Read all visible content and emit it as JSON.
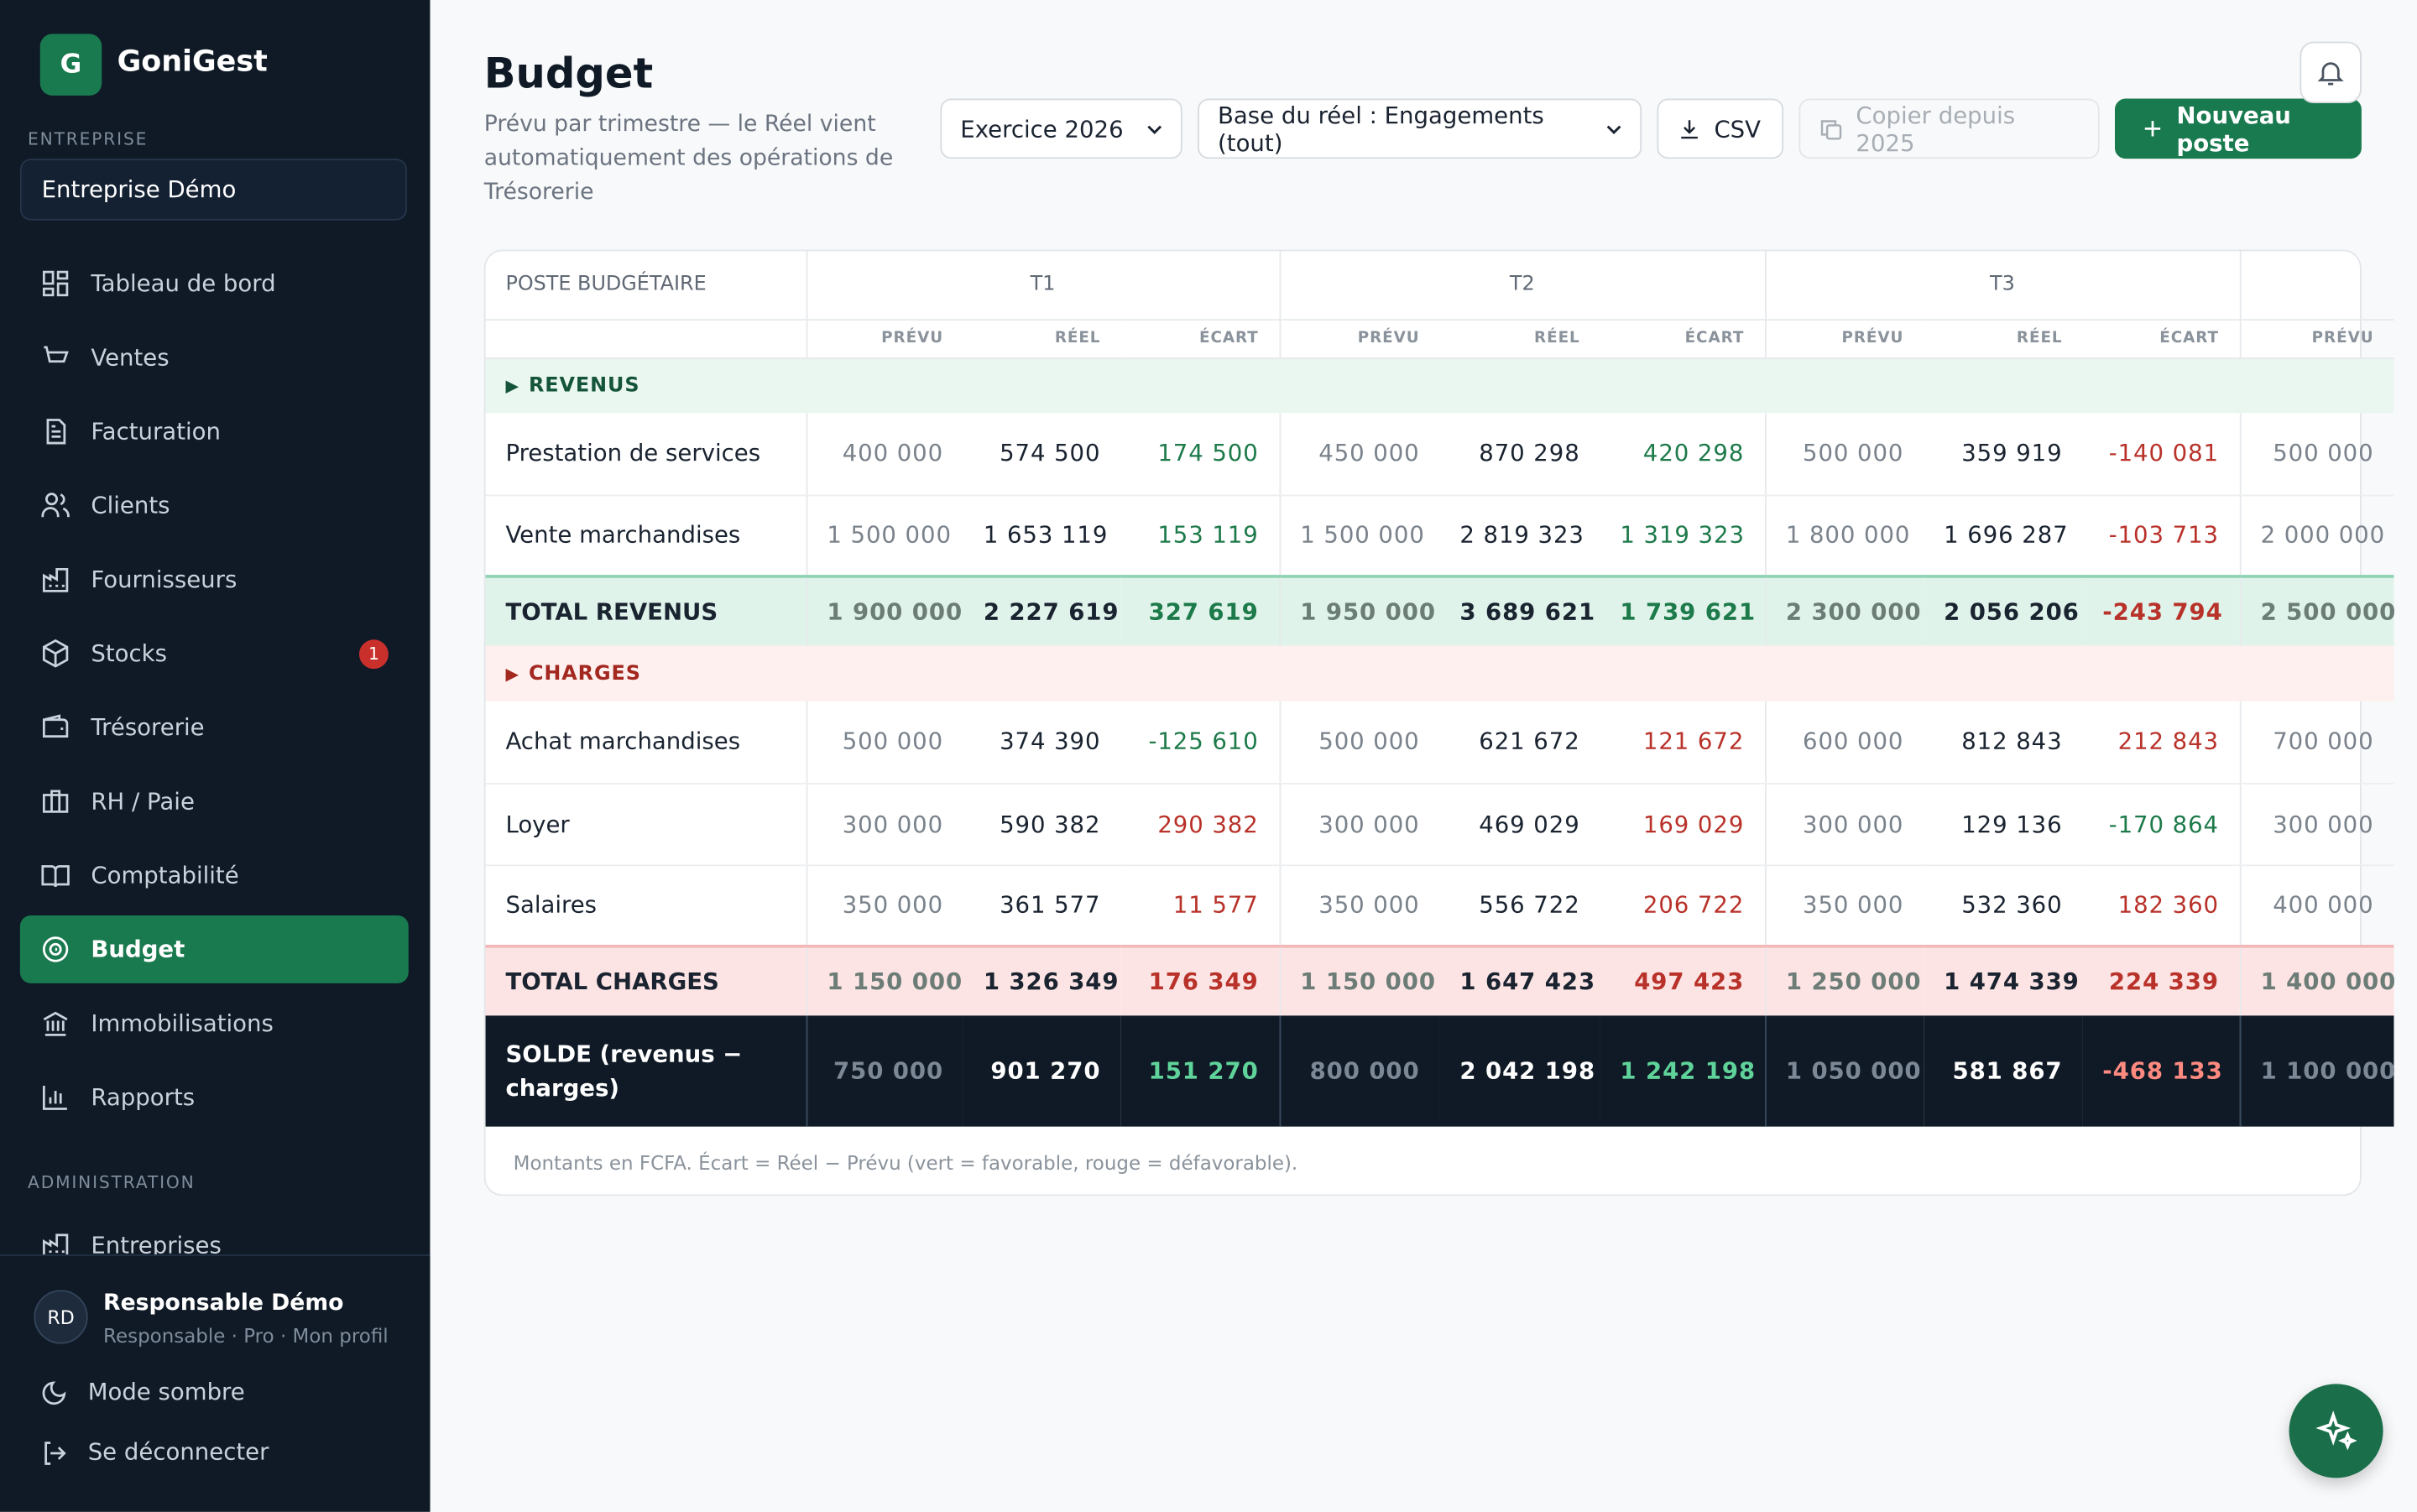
{
  "sidebar": {
    "logo": "G",
    "brand": "GoniGest",
    "section_company": "ENTREPRISE",
    "company": "Entreprise Démo",
    "nav": [
      {
        "label": "Tableau de bord"
      },
      {
        "label": "Ventes"
      },
      {
        "label": "Facturation"
      },
      {
        "label": "Clients"
      },
      {
        "label": "Fournisseurs"
      },
      {
        "label": "Stocks",
        "badge": "1"
      },
      {
        "label": "Trésorerie"
      },
      {
        "label": "RH / Paie"
      },
      {
        "label": "Comptabilité"
      },
      {
        "label": "Budget",
        "active": true
      },
      {
        "label": "Immobilisations"
      },
      {
        "label": "Rapports"
      }
    ],
    "section_admin": "ADMINISTRATION",
    "admin_nav": [
      {
        "label": "Entreprises"
      }
    ],
    "user": {
      "initials": "RD",
      "name": "Responsable Démo",
      "meta": "Responsable · Pro · Mon profil"
    },
    "dark_mode": "Mode sombre",
    "logout": "Se déconnecter"
  },
  "header": {
    "title": "Budget",
    "subtitle": "Prévu par trimestre — le Réel vient automatiquement des opérations de Trésorerie",
    "year_select": "Exercice 2026",
    "base_select": "Base du réel : Engagements (tout)",
    "csv": "CSV",
    "copy": "Copier depuis 2025",
    "new": "Nouveau poste"
  },
  "table": {
    "col_header": "POSTE BUDGÉTAIRE",
    "quarters": [
      "T1",
      "T2",
      "T3"
    ],
    "sub_headers": [
      "PRÉVU",
      "RÉEL",
      "ÉCART"
    ],
    "sections": [
      {
        "title": "REVENUS",
        "tone": "revenue",
        "rows": [
          {
            "label": "Prestation de services",
            "cells": [
              "400 000",
              "574 500",
              "174 500",
              "450 000",
              "870 298",
              "420 298",
              "500 000",
              "359 919",
              "-140 081",
              "500 000"
            ]
          },
          {
            "label": "Vente marchandises",
            "cells": [
              "1 500 000",
              "1 653 119",
              "153 119",
              "1 500 000",
              "2 819 323",
              "1 319 323",
              "1 800 000",
              "1 696 287",
              "-103 713",
              "2 000 000"
            ]
          }
        ],
        "total": {
          "label": "TOTAL REVENUS",
          "cells": [
            "1 900 000",
            "2 227 619",
            "327 619",
            "1 950 000",
            "3 689 621",
            "1 739 621",
            "2 300 000",
            "2 056 206",
            "-243 794",
            "2 500 000"
          ]
        }
      },
      {
        "title": "CHARGES",
        "tone": "charge",
        "rows": [
          {
            "label": "Achat marchandises",
            "cells": [
              "500 000",
              "374 390",
              "-125 610",
              "500 000",
              "621 672",
              "121 672",
              "600 000",
              "812 843",
              "212 843",
              "700 000"
            ]
          },
          {
            "label": "Loyer",
            "cells": [
              "300 000",
              "590 382",
              "290 382",
              "300 000",
              "469 029",
              "169 029",
              "300 000",
              "129 136",
              "-170 864",
              "300 000"
            ]
          },
          {
            "label": "Salaires",
            "cells": [
              "350 000",
              "361 577",
              "11 577",
              "350 000",
              "556 722",
              "206 722",
              "350 000",
              "532 360",
              "182 360",
              "400 000"
            ]
          }
        ],
        "total": {
          "label": "TOTAL CHARGES",
          "cells": [
            "1 150 000",
            "1 326 349",
            "176 349",
            "1 150 000",
            "1 647 423",
            "497 423",
            "1 250 000",
            "1 474 339",
            "224 339",
            "1 400 000"
          ]
        }
      }
    ],
    "balance": {
      "label": "SOLDE (revenus − charges)",
      "cells": [
        "750 000",
        "901 270",
        "151 270",
        "800 000",
        "2 042 198",
        "1 242 198",
        "1 050 000",
        "581 867",
        "-468 133",
        "1 100 000"
      ]
    },
    "note": "Montants en FCFA. Écart = Réel − Prévu (vert = favorable, rouge = défavorable)."
  }
}
